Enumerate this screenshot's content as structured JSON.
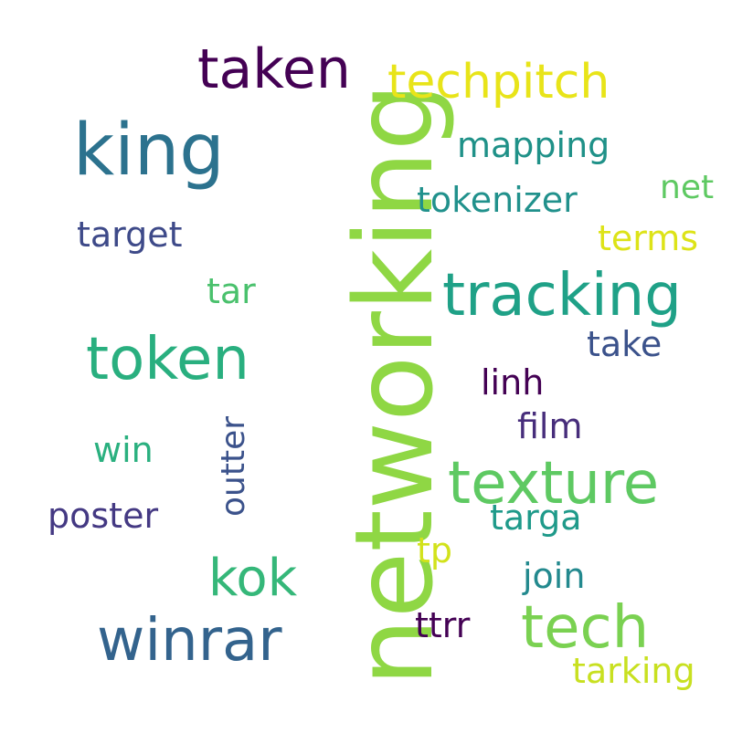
{
  "words": {
    "networking": {
      "text": "networking",
      "color": "#8fd744"
    },
    "outter": {
      "text": "outter",
      "color": "#3b528b"
    },
    "taken": {
      "text": "taken",
      "color": "#440154"
    },
    "techpitch": {
      "text": "techpitch",
      "color": "#e8e419"
    },
    "king": {
      "text": "king",
      "color": "#2c728e"
    },
    "mapping": {
      "text": "mapping",
      "color": "#1f9188"
    },
    "net": {
      "text": "net",
      "color": "#5ec962"
    },
    "tokenizer": {
      "text": "tokenizer",
      "color": "#21918c"
    },
    "target": {
      "text": "target",
      "color": "#3e4a89"
    },
    "terms": {
      "text": "terms",
      "color": "#dde318"
    },
    "tar": {
      "text": "tar",
      "color": "#4ac16d"
    },
    "tracking": {
      "text": "tracking",
      "color": "#1fa187"
    },
    "token": {
      "text": "token",
      "color": "#29af7f"
    },
    "take": {
      "text": "take",
      "color": "#3b528b"
    },
    "linh": {
      "text": "linh",
      "color": "#440154"
    },
    "film": {
      "text": "film",
      "color": "#472d7b"
    },
    "win": {
      "text": "win",
      "color": "#2ab07f"
    },
    "texture": {
      "text": "texture",
      "color": "#5ec962"
    },
    "poster": {
      "text": "poster",
      "color": "#443983"
    },
    "targa": {
      "text": "targa",
      "color": "#1f9a8a"
    },
    "tp": {
      "text": "tp",
      "color": "#d2e21b"
    },
    "kok": {
      "text": "kok",
      "color": "#35b779"
    },
    "join": {
      "text": "join",
      "color": "#23898e"
    },
    "winrar": {
      "text": "winrar",
      "color": "#33638d"
    },
    "ttrr": {
      "text": "ttrr",
      "color": "#440154"
    },
    "tech": {
      "text": "tech",
      "color": "#7ad151"
    },
    "tarking": {
      "text": "tarking",
      "color": "#c8e020"
    }
  }
}
